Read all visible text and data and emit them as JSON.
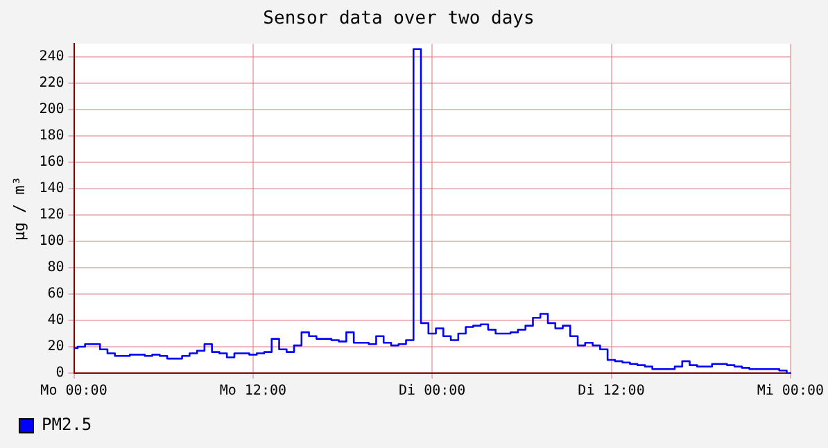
{
  "chart_data": {
    "type": "step",
    "title": "Sensor data over two days",
    "ylabel": "µg / m³",
    "categories": [
      "Mo 00:00",
      null,
      null,
      null,
      null,
      null,
      null,
      null,
      null,
      null,
      null,
      null,
      null,
      null,
      null,
      null,
      null,
      null,
      null,
      null,
      null,
      null,
      null,
      null,
      "Mo 12:00",
      null,
      null,
      null,
      null,
      null,
      null,
      null,
      null,
      null,
      null,
      null,
      null,
      null,
      null,
      null,
      null,
      null,
      null,
      null,
      null,
      null,
      null,
      null,
      "Di 00:00",
      null,
      null,
      null,
      null,
      null,
      null,
      null,
      null,
      null,
      null,
      null,
      null,
      null,
      null,
      null,
      null,
      null,
      null,
      null,
      null,
      null,
      null,
      null,
      "Di 12:00",
      null,
      null,
      null,
      null,
      null,
      null,
      null,
      null,
      null,
      null,
      null,
      null,
      null,
      null,
      null,
      null,
      null,
      null,
      null,
      null,
      null,
      null,
      null,
      "Mi 00:00"
    ],
    "series": [
      {
        "name": "PM2.5",
        "color": "#0000ff",
        "values": [
          19,
          20,
          22,
          22,
          18,
          15,
          13,
          13,
          14,
          14,
          13,
          14,
          13,
          11,
          11,
          13,
          15,
          17,
          22,
          16,
          15,
          12,
          15,
          15,
          14,
          15,
          16,
          26,
          18,
          16,
          21,
          31,
          28,
          26,
          26,
          25,
          24,
          31,
          23,
          23,
          22,
          28,
          23,
          21,
          22,
          25,
          246,
          38,
          30,
          34,
          28,
          25,
          30,
          35,
          36,
          37,
          33,
          30,
          30,
          31,
          33,
          36,
          42,
          45,
          38,
          34,
          36,
          28,
          21,
          23,
          21,
          18,
          10,
          9,
          8,
          7,
          6,
          5,
          3,
          3,
          3,
          5,
          9,
          6,
          5,
          5,
          7,
          7,
          6,
          5,
          4,
          3,
          3,
          3,
          3,
          2,
          0
        ]
      }
    ],
    "ylim": [
      0,
      250
    ],
    "yticks": [
      0,
      20,
      40,
      60,
      80,
      100,
      120,
      140,
      160,
      180,
      200,
      220,
      240
    ],
    "grid": true,
    "legend": "bottom left",
    "marker": "none",
    "line_style": "solid"
  }
}
